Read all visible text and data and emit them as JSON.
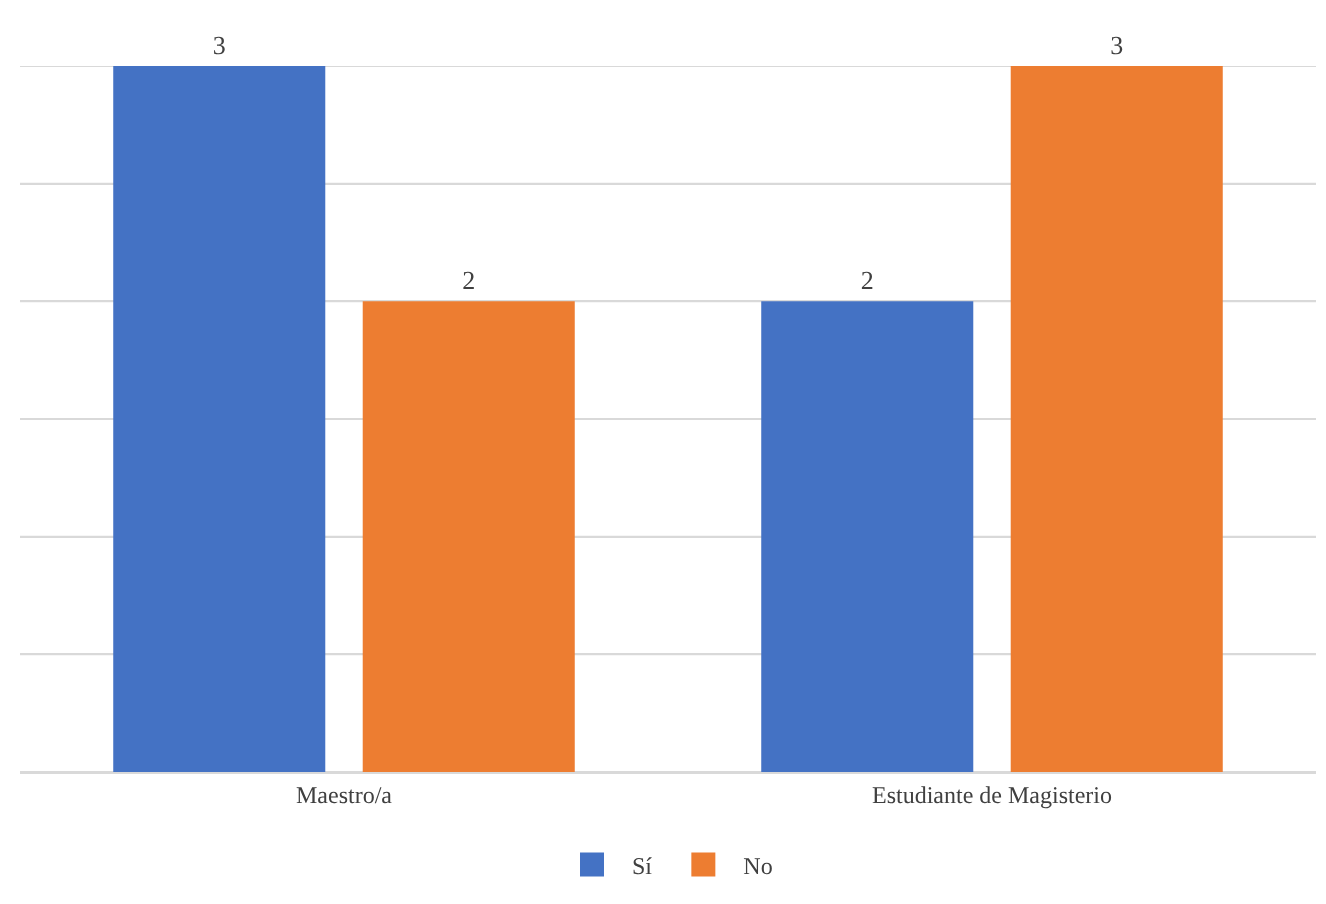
{
  "chart_data": {
    "type": "bar",
    "categories": [
      "Maestro/a",
      "Estudiante de Magisterio"
    ],
    "series": [
      {
        "name": "Sí",
        "color": "#4472c4",
        "values": [
          3,
          2
        ]
      },
      {
        "name": "No",
        "color": "#ed7d31",
        "values": [
          2,
          3
        ]
      }
    ],
    "ylim": [
      0,
      3
    ],
    "yticks": [
      {
        "value": 0,
        "label": null
      },
      {
        "value": 0.5,
        "label": null
      },
      {
        "value": 1,
        "label": null
      },
      {
        "value": 1.5,
        "label": null
      },
      {
        "value": 2,
        "label": null
      },
      {
        "value": 2.5,
        "label": null
      },
      {
        "value": 3,
        "label": null
      }
    ],
    "tick_labels": "x",
    "grid": "y",
    "legend": "bottom",
    "data_labels": true
  }
}
